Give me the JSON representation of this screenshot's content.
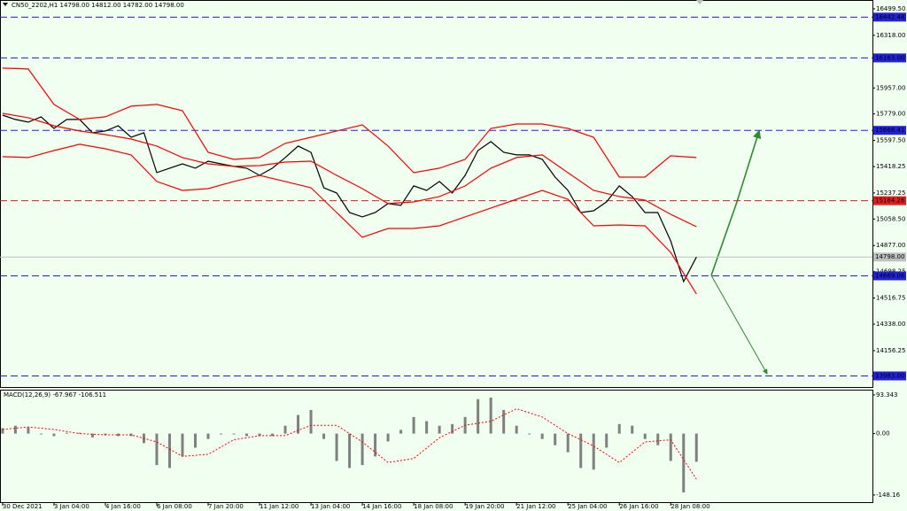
{
  "chart_data": [
    {
      "type": "line",
      "title": "CN50_2202,H1  14798.00 14812.00 14782.00 14798.00",
      "xlim": [
        -0.2,
        67.7
      ],
      "ylim": [
        13907,
        16560
      ],
      "xticks": [
        {
          "value": 0,
          "label": "30 Dec 2021"
        },
        {
          "value": 4,
          "label": "3 Jan 04:00"
        },
        {
          "value": 8,
          "label": "4 Jan 16:00"
        },
        {
          "value": 12,
          "label": "6 Jan 08:00"
        },
        {
          "value": 16,
          "label": "7 Jan 20:00"
        },
        {
          "value": 20,
          "label": "11 Jan 12:00"
        },
        {
          "value": 24,
          "label": "13 Jan 04:00"
        },
        {
          "value": 28,
          "label": "14 Jan 16:00"
        },
        {
          "value": 32,
          "label": "18 Jan 08:00"
        },
        {
          "value": 36,
          "label": "19 Jan 20:00"
        },
        {
          "value": 40,
          "label": "21 Jan 12:00"
        },
        {
          "value": 44,
          "label": "25 Jan 04:00"
        },
        {
          "value": 48,
          "label": "26 Jan 16:00"
        },
        {
          "value": 52,
          "label": "28 Jan 08:00"
        }
      ],
      "yticks": [
        {
          "value": 16499.5,
          "label": "16499.50"
        },
        {
          "value": 16318,
          "label": "16318.00"
        },
        {
          "value": 15957,
          "label": "15957.00"
        },
        {
          "value": 15779,
          "label": "15779.00"
        },
        {
          "value": 15597.5,
          "label": "15597.50"
        },
        {
          "value": 15418.25,
          "label": "15418.25"
        },
        {
          "value": 15237.25,
          "label": "15237.25"
        },
        {
          "value": 15058.5,
          "label": "15058.50"
        },
        {
          "value": 14877,
          "label": "14877.00"
        },
        {
          "value": 14698.25,
          "label": "14698.25"
        },
        {
          "value": 14516.75,
          "label": "14516.75"
        },
        {
          "value": 14338,
          "label": "14338.00"
        },
        {
          "value": 14156.25,
          "label": "14156.25"
        }
      ],
      "levels": [
        {
          "value": 16442.48,
          "label": "16442.48",
          "color": "#2222dd",
          "style": "dashed"
        },
        {
          "value": 16163,
          "label": "16163.00",
          "color": "#2222dd",
          "style": "dashed"
        },
        {
          "value": 15666.41,
          "label": "15666.41",
          "color": "#2222dd",
          "style": "dashed"
        },
        {
          "value": 15184.26,
          "label": "15184.26",
          "color": "#e02020",
          "style": "dashed"
        },
        {
          "value": 14798,
          "label": "14798.00",
          "color": "#c0c0c0",
          "style": "solid"
        },
        {
          "value": 14669.06,
          "label": "14669.06",
          "color": "#2222dd",
          "style": "dashed"
        },
        {
          "value": 13983,
          "label": "13983.00",
          "color": "#2222dd",
          "style": "dashed"
        }
      ],
      "series": [
        {
          "color": "#000000",
          "x": [
            0,
            1,
            2,
            3,
            4,
            5,
            6,
            7,
            8,
            9,
            10,
            11,
            12,
            13,
            14,
            15,
            16,
            17,
            18,
            19,
            20,
            21,
            22,
            23,
            24,
            25,
            26,
            27,
            28,
            29,
            30,
            31,
            32,
            33,
            34,
            35,
            36,
            37,
            38,
            39,
            40,
            41,
            42,
            43,
            44,
            45,
            46,
            47,
            48,
            49,
            50,
            51,
            52,
            53,
            54
          ],
          "values": [
            15771,
            15741,
            15723,
            15759,
            15680,
            15741,
            15741,
            15650,
            15662,
            15698,
            15619,
            15650,
            15377,
            15407,
            15437,
            15407,
            15455,
            15437,
            15419,
            15407,
            15358,
            15407,
            15480,
            15559,
            15516,
            15273,
            15237,
            15103,
            15073,
            15103,
            15164,
            15152,
            15286,
            15255,
            15316,
            15237,
            15358,
            15528,
            15589,
            15516,
            15498,
            15498,
            15468,
            15346,
            15255,
            15103,
            15115,
            15176,
            15286,
            15213,
            15103,
            15103,
            14909,
            14630,
            14798
          ]
        },
        {
          "color": "#ff0000",
          "x": [
            0,
            2,
            4,
            6,
            8,
            10,
            12,
            14,
            16,
            18,
            20,
            22,
            24,
            26,
            28,
            30,
            32,
            34,
            36,
            38,
            40,
            42,
            44,
            46,
            48,
            50,
            52,
            54
          ],
          "values": [
            16093,
            16087,
            15844,
            15741,
            15759,
            15832,
            15844,
            15801,
            15516,
            15467,
            15480,
            15577,
            15619,
            15662,
            15704,
            15559,
            15376,
            15407,
            15467,
            15680,
            15710,
            15710,
            15680,
            15619,
            15346,
            15346,
            15492,
            15480
          ]
        },
        {
          "color": "#ff0000",
          "x": [
            0,
            2,
            4,
            6,
            8,
            10,
            12,
            14,
            16,
            18,
            20,
            22,
            24,
            26,
            28,
            30,
            32,
            34,
            36,
            38,
            40,
            42,
            44,
            46,
            48,
            50,
            52,
            54
          ],
          "values": [
            15783,
            15753,
            15698,
            15662,
            15637,
            15607,
            15559,
            15480,
            15437,
            15419,
            15425,
            15449,
            15455,
            15358,
            15267,
            15164,
            15176,
            15213,
            15285,
            15407,
            15480,
            15498,
            15376,
            15255,
            15213,
            15188,
            15091,
            15006
          ]
        },
        {
          "color": "#ff0000",
          "x": [
            0,
            2,
            4,
            6,
            8,
            10,
            12,
            14,
            16,
            18,
            20,
            22,
            24,
            26,
            28,
            30,
            32,
            34,
            36,
            38,
            40,
            42,
            44,
            46,
            48,
            50,
            52,
            54
          ],
          "values": [
            15486,
            15480,
            15528,
            15571,
            15540,
            15498,
            15316,
            15255,
            15267,
            15316,
            15358,
            15316,
            15273,
            15103,
            14933,
            14994,
            14994,
            15012,
            15073,
            15134,
            15194,
            15255,
            15194,
            15012,
            15018,
            15012,
            14830,
            14545
          ]
        }
      ]
    },
    {
      "type": "bar",
      "title": "MACD(12,26,9) -67.967 -106.511",
      "xlim": [
        -0.2,
        67.7
      ],
      "ylim": [
        -167.6,
        103.9
      ],
      "yticks": [
        93.343,
        {
          "value": 0,
          "label": "0.00"
        },
        -148.16
      ],
      "series": [
        {
          "color": "#808080",
          "x": [
            0,
            1,
            2,
            3,
            4,
            5,
            6,
            7,
            8,
            9,
            10,
            11,
            12,
            13,
            14,
            15,
            16,
            17,
            18,
            19,
            20,
            21,
            22,
            23,
            24,
            25,
            26,
            27,
            28,
            29,
            30,
            31,
            32,
            33,
            34,
            35,
            36,
            37,
            38,
            39,
            40,
            41,
            42,
            43,
            44,
            45,
            46,
            47,
            48,
            49,
            50,
            51,
            52,
            53,
            54
          ],
          "values": [
            13,
            19,
            15,
            -2,
            -6,
            2,
            2,
            -9,
            -4,
            -6,
            -6,
            -23,
            -76,
            -83,
            -55,
            -34,
            -13,
            -2,
            -2,
            -6,
            -6,
            -6,
            19,
            45,
            57,
            -13,
            -66,
            -83,
            -76,
            -55,
            -19,
            9,
            40,
            30,
            19,
            23,
            40,
            83,
            87,
            57,
            19,
            -2,
            -13,
            -28,
            -45,
            -83,
            -87,
            -34,
            23,
            19,
            -13,
            -28,
            -66,
            -142,
            -68
          ]
        },
        {
          "type": "line",
          "color": "#ff0000",
          "x": [
            0,
            2,
            4,
            6,
            8,
            10,
            12,
            14,
            16,
            18,
            20,
            22,
            24,
            26,
            28,
            30,
            32,
            34,
            36,
            38,
            40,
            42,
            44,
            46,
            48,
            50,
            52,
            54
          ],
          "values": [
            10,
            16,
            10,
            0,
            -3,
            -3,
            -20,
            -55,
            -50,
            -15,
            -5,
            -5,
            20,
            20,
            -20,
            -70,
            -60,
            -10,
            20,
            30,
            60,
            40,
            0,
            -30,
            -70,
            -20,
            -15,
            -110
          ]
        }
      ]
    }
  ]
}
